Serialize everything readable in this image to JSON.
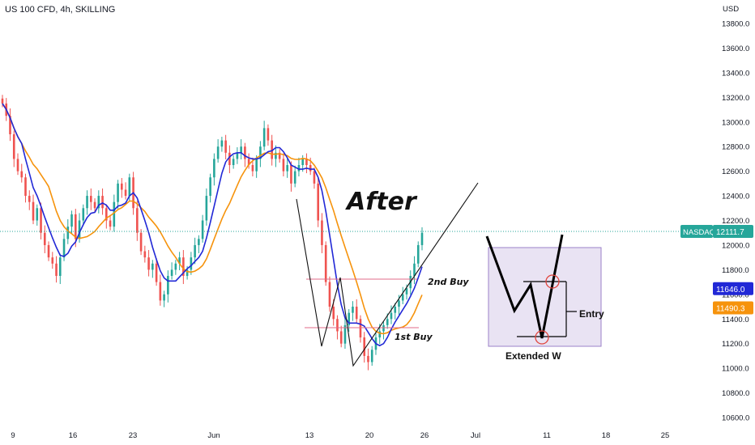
{
  "chart_data": {
    "type": "candlestick",
    "title": "US 100 CFD, 4h, SKILLING",
    "currency": "USD",
    "ylim": [
      10500,
      13950
    ],
    "yticks": [
      10600,
      10800,
      11000,
      11200,
      11400,
      11600,
      11800,
      12000,
      12200,
      12400,
      12600,
      12800,
      13000,
      13200,
      13400,
      13600,
      13800
    ],
    "ytick_labels": [
      "10600.0",
      "10800.0",
      "11000.0",
      "11200.0",
      "11400.0",
      "11600.0",
      "11800.0",
      "12000.0",
      "12200.0",
      "12400.0",
      "12600.0",
      "12800.0",
      "13000.0",
      "13200.0",
      "13400.0",
      "13600.0",
      "13800.0"
    ],
    "xticks": [
      "9",
      "16",
      "23",
      "Jun",
      "13",
      "20",
      "26",
      "Jul",
      "11",
      "18",
      "25"
    ],
    "colors": {
      "up": "#26a69a",
      "down": "#ef5350",
      "ma_fast": "#2128d6",
      "ma_slow": "#f6930c",
      "last_price": "#26a69a"
    },
    "closes": [
      13150,
      13050,
      12900,
      12700,
      12600,
      12550,
      12400,
      12350,
      12200,
      12300,
      12100,
      12000,
      11900,
      11850,
      11750,
      11900,
      12050,
      12150,
      12250,
      12050,
      12200,
      12300,
      12400,
      12350,
      12300,
      12400,
      12300,
      12200,
      12150,
      12350,
      12500,
      12450,
      12400,
      12550,
      12300,
      12100,
      11950,
      11900,
      11800,
      11850,
      11700,
      11550,
      11600,
      11750,
      11800,
      11850,
      11900,
      11750,
      11800,
      11900,
      12000,
      12050,
      12200,
      12400,
      12550,
      12700,
      12800,
      12850,
      12750,
      12650,
      12700,
      12750,
      12800,
      12700,
      12650,
      12600,
      12700,
      12800,
      12950,
      12850,
      12700,
      12750,
      12700,
      12600,
      12650,
      12500,
      12600,
      12650,
      12700,
      12650,
      12600,
      12500,
      12200,
      12000,
      11700,
      11500,
      11400,
      11300,
      11200,
      11350,
      11450,
      11500,
      11400,
      11250,
      11100,
      11050,
      11150,
      11250,
      11300,
      11350,
      11400,
      11450,
      11500,
      11550,
      11600,
      11650,
      11750,
      11850,
      12000,
      12100
    ],
    "series": [
      {
        "name": "",
        "values": []
      }
    ],
    "last_price": "12111.7",
    "last_price_label": "NASDAQ",
    "ma_fast_value": "11646.0",
    "ma_slow_value": "11490.3",
    "annotations": {
      "after": "After",
      "second_buy": "2nd Buy",
      "first_buy": "1st Buy",
      "entry": "Entry",
      "extended_w": "Extended W"
    },
    "grid": false,
    "legend": "none"
  }
}
